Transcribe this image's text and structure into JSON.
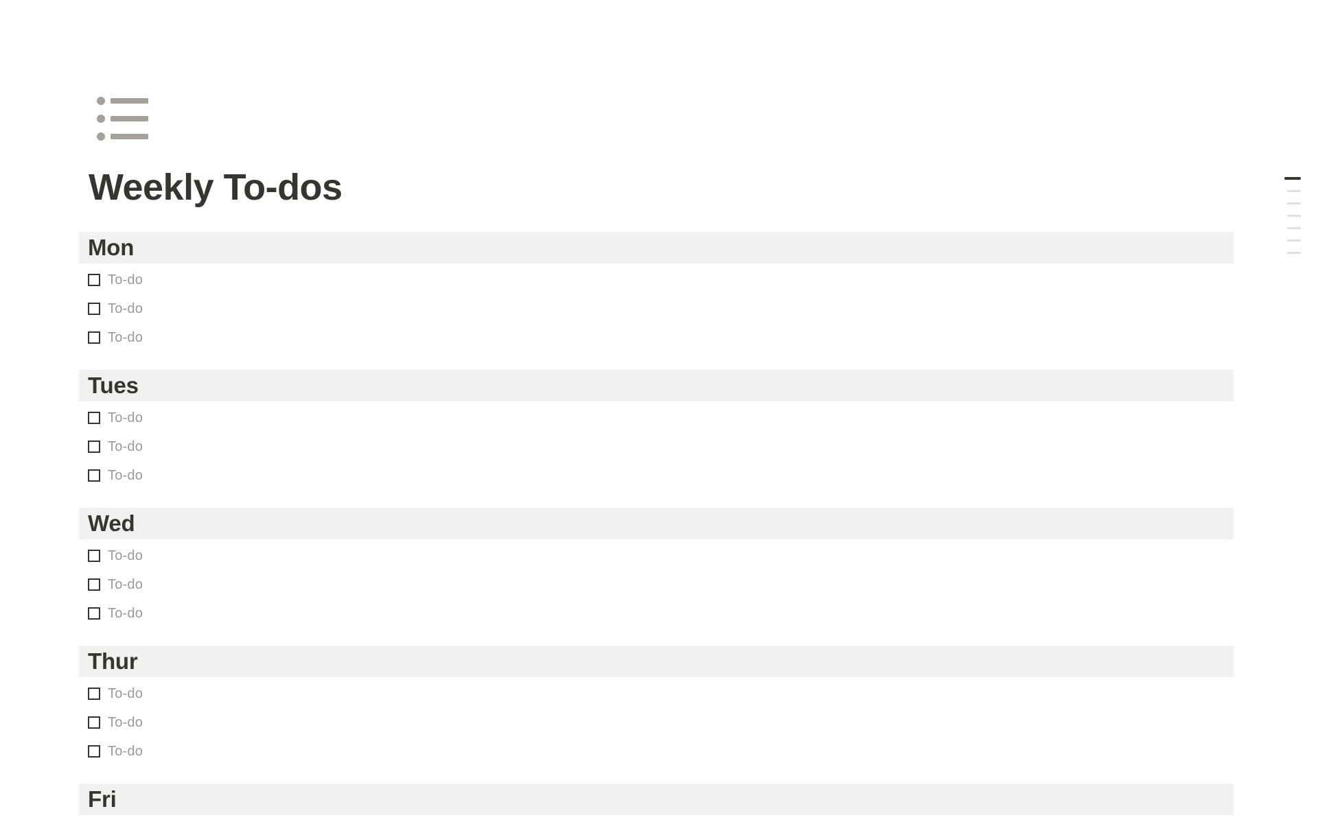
{
  "page": {
    "icon": "bullet-list-icon",
    "title": "Weekly To-dos"
  },
  "sections": [
    {
      "label": "Mon",
      "todos": [
        "To-do",
        "To-do",
        "To-do"
      ]
    },
    {
      "label": "Tues",
      "todos": [
        "To-do",
        "To-do",
        "To-do"
      ]
    },
    {
      "label": "Wed",
      "todos": [
        "To-do",
        "To-do",
        "To-do"
      ]
    },
    {
      "label": "Thur",
      "todos": [
        "To-do",
        "To-do",
        "To-do"
      ]
    },
    {
      "label": "Fri",
      "todos": []
    }
  ],
  "outline": {
    "bars": [
      "active",
      "inactive",
      "inactive",
      "inactive",
      "inactive",
      "inactive",
      "inactive"
    ]
  },
  "colors": {
    "background": "#FFFFFF",
    "text": "#37352F",
    "muted_text": "#9B9A97",
    "band_background": "#F1F1EF",
    "icon_gray": "#A5A29B",
    "outline_active": "#37352F",
    "outline_inactive": "#E2E1DE"
  }
}
